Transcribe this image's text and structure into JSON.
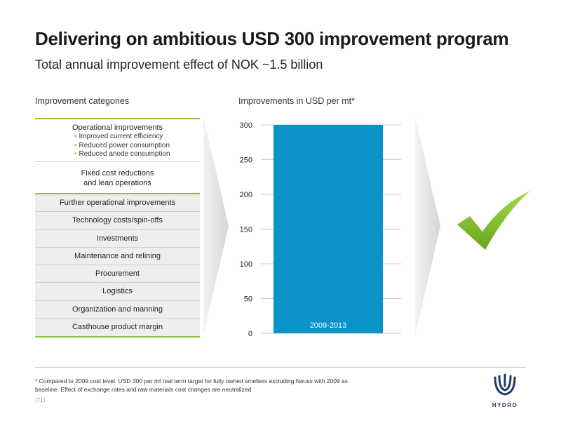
{
  "header": {
    "title": "Delivering on ambitious USD 300 improvement program",
    "subtitle": "Total annual improvement effect of NOK ~1.5 billion"
  },
  "categories_panel": {
    "label": "Improvement categories",
    "operational": {
      "title": "Operational improvements",
      "bullets": [
        "Improved current efficiency",
        "Reduced power consumption",
        "Reduced anode consumption"
      ]
    },
    "fixed_cost": {
      "line1": "Fixed cost reductions",
      "line2": "and lean operations"
    },
    "rows": [
      "Further operational improvements",
      "Technology costs/spin-offs",
      "Investments",
      "Maintenance and relining",
      "Procurement",
      "Logistics",
      "Organization and manning",
      "Casthouse product margin"
    ]
  },
  "chart_label": "Improvements in USD per mt*",
  "chart_data": {
    "type": "bar",
    "categories": [
      "2009-2013"
    ],
    "values": [
      300
    ],
    "title": "Improvements in USD per mt*",
    "xlabel": "",
    "ylabel": "",
    "ylim": [
      0,
      300
    ],
    "yticks": [
      0,
      50,
      100,
      150,
      200,
      250,
      300
    ],
    "grid": true,
    "bar_color": "#0a93c9"
  },
  "colors": {
    "accent_green": "#8cc63f",
    "bar_blue": "#0a93c9",
    "logo_blue": "#1e3a6b"
  },
  "footer": {
    "footnote": "* Compared to 2009 cost level. USD 300 per mt real term target for fully owned smelters excluding Neuss with 2009 as baseline. Effect of exchange rates and raw materials cost  changes are neutralized",
    "page": "(71)",
    "logo_text": "HYDRO"
  },
  "icons": {
    "check": "check-mark-icon",
    "logo": "hydro-logo-icon"
  }
}
